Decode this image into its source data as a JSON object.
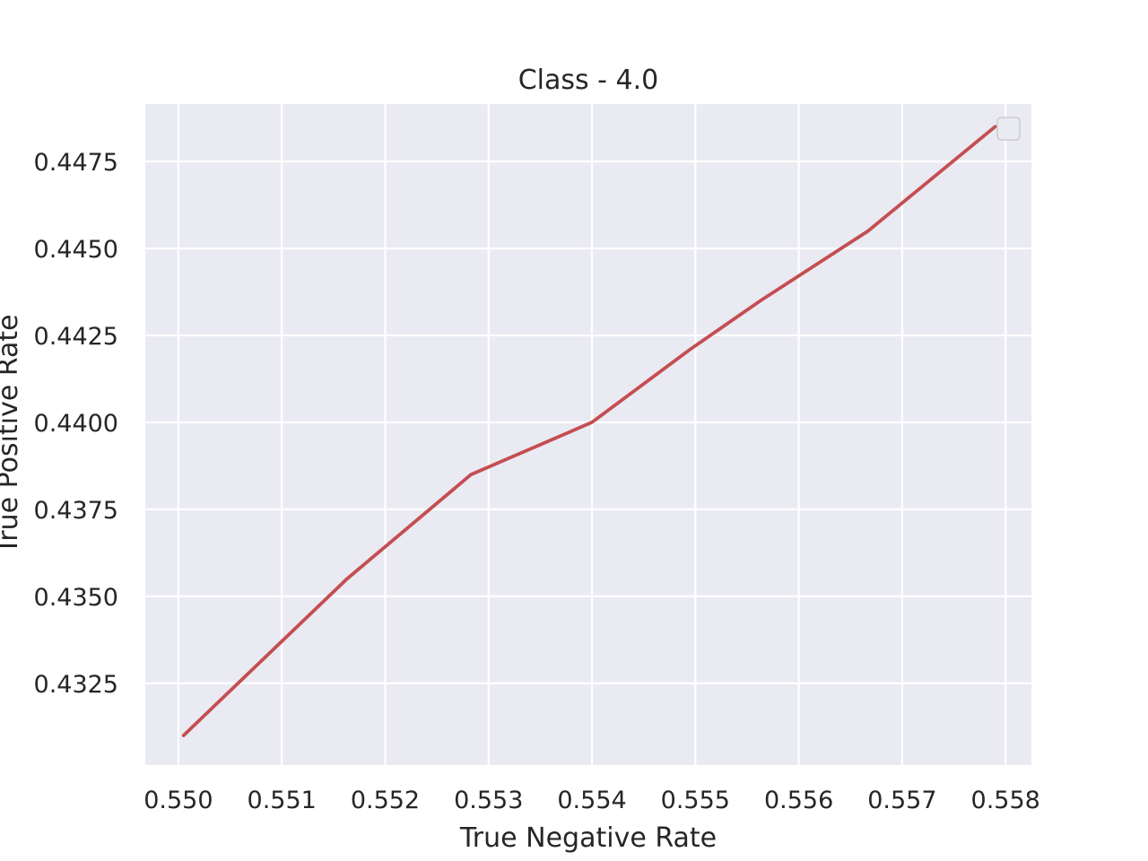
{
  "chart_data": {
    "type": "line",
    "title": "Class - 4.0",
    "xlabel": "True Negative Rate",
    "ylabel": "True Positive Rate",
    "xlim": [
      0.54968,
      0.55825
    ],
    "ylim": [
      0.43015,
      0.44915
    ],
    "xticks": [
      0.55,
      0.551,
      0.552,
      0.553,
      0.554,
      0.555,
      0.556,
      0.557,
      0.558
    ],
    "xtick_labels": [
      "0.550",
      "0.551",
      "0.552",
      "0.553",
      "0.554",
      "0.555",
      "0.556",
      "0.557",
      "0.558"
    ],
    "yticks": [
      0.4325,
      0.435,
      0.4375,
      0.44,
      0.4425,
      0.445,
      0.4475
    ],
    "ytick_labels": [
      "0.4325",
      "0.4350",
      "0.4375",
      "0.4400",
      "0.4425",
      "0.4450",
      "0.4475"
    ],
    "grid": true,
    "legend": "top-right",
    "series": [
      {
        "color": "#c44e52",
        "x": [
          0.55005,
          0.55163,
          0.55283,
          0.554,
          0.55495,
          0.55563,
          0.55667,
          0.5579
        ],
        "y": [
          0.431,
          0.4355,
          0.4385,
          0.44,
          0.4421,
          0.4435,
          0.4455,
          0.4485
        ]
      }
    ]
  },
  "colors": {
    "plot_background": "#eaeaf2",
    "grid": "#ffffff",
    "text": "#262626"
  }
}
